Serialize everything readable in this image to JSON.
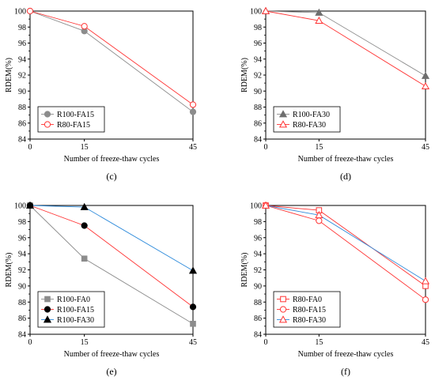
{
  "chart_data": [
    {
      "panel": "(c)",
      "type": "line",
      "xlabel": "Number of freeze-thaw cycles",
      "ylabel": "RDEM(%)",
      "xticks": [
        0,
        15,
        45
      ],
      "yticks": [
        84,
        86,
        88,
        90,
        92,
        94,
        96,
        98,
        100
      ],
      "xlim": [
        0,
        45
      ],
      "ylim": [
        84,
        100
      ],
      "grid": false,
      "legend_position": "bottom-left",
      "series": [
        {
          "name": "R100-FA15",
          "marker": "circle-filled",
          "color": "#8c8c8c",
          "line_color": "#8c8c8c",
          "x": [
            0,
            15,
            45
          ],
          "y": [
            100,
            97.5,
            87.4
          ]
        },
        {
          "name": "R80-FA15",
          "marker": "circle-open",
          "color": "#ff3333",
          "line_color": "#ff3333",
          "x": [
            0,
            15,
            45
          ],
          "y": [
            100,
            98.1,
            88.3
          ]
        }
      ]
    },
    {
      "panel": "(d)",
      "type": "line",
      "xlabel": "Number of freeze-thaw cycles",
      "ylabel": "RDEM(%)",
      "xticks": [
        0,
        15,
        45
      ],
      "yticks": [
        84,
        86,
        88,
        90,
        92,
        94,
        96,
        98,
        100
      ],
      "xlim": [
        0,
        45
      ],
      "ylim": [
        84,
        100
      ],
      "grid": false,
      "legend_position": "bottom-left",
      "series": [
        {
          "name": "R100-FA30",
          "marker": "triangle-filled",
          "color": "#6e6e6e",
          "line_color": "#8c8c8c",
          "x": [
            0,
            15,
            45
          ],
          "y": [
            100,
            99.8,
            91.9
          ]
        },
        {
          "name": "R80-FA30",
          "marker": "triangle-open",
          "color": "#ff3333",
          "line_color": "#ff3333",
          "x": [
            0,
            15,
            45
          ],
          "y": [
            100,
            98.8,
            90.6
          ]
        }
      ]
    },
    {
      "panel": "(e)",
      "type": "line",
      "xlabel": "Number of freeze-thaw cycles",
      "ylabel": "RDEM(%)",
      "xticks": [
        0,
        15,
        45
      ],
      "yticks": [
        84,
        86,
        88,
        90,
        92,
        94,
        96,
        98,
        100
      ],
      "xlim": [
        0,
        45
      ],
      "ylim": [
        84,
        100
      ],
      "grid": false,
      "legend_position": "bottom-left",
      "series": [
        {
          "name": "R100-FA0",
          "marker": "square-filled",
          "color": "#8c8c8c",
          "line_color": "#8c8c8c",
          "x": [
            0,
            15,
            45
          ],
          "y": [
            100,
            93.4,
            85.3
          ]
        },
        {
          "name": "R100-FA15",
          "marker": "circle-filled",
          "color": "#000000",
          "line_color": "#ff3333",
          "x": [
            0,
            15,
            45
          ],
          "y": [
            100,
            97.5,
            87.4
          ]
        },
        {
          "name": "R100-FA30",
          "marker": "triangle-filled",
          "color": "#000000",
          "line_color": "#2e8bdb",
          "x": [
            0,
            15,
            45
          ],
          "y": [
            100,
            99.8,
            91.9
          ]
        }
      ]
    },
    {
      "panel": "(f)",
      "type": "line",
      "xlabel": "Number of freeze-thaw cycles",
      "ylabel": "RDEM(%)",
      "xticks": [
        0,
        15,
        45
      ],
      "yticks": [
        84,
        86,
        88,
        90,
        92,
        94,
        96,
        98,
        100
      ],
      "xlim": [
        0,
        45
      ],
      "ylim": [
        84,
        100
      ],
      "grid": false,
      "legend_position": "bottom-left",
      "series": [
        {
          "name": "R80-FA0",
          "marker": "square-open",
          "color": "#ff3333",
          "line_color": "#ff3333",
          "x": [
            0,
            15,
            45
          ],
          "y": [
            100,
            99.4,
            90.0
          ]
        },
        {
          "name": "R80-FA15",
          "marker": "circle-open",
          "color": "#ff3333",
          "line_color": "#ff3333",
          "x": [
            0,
            15,
            45
          ],
          "y": [
            100,
            98.1,
            88.3
          ]
        },
        {
          "name": "R80-FA30",
          "marker": "triangle-open",
          "color": "#ff3333",
          "line_color": "#2e8bdb",
          "x": [
            0,
            15,
            45
          ],
          "y": [
            100,
            98.8,
            90.6
          ]
        }
      ]
    }
  ]
}
